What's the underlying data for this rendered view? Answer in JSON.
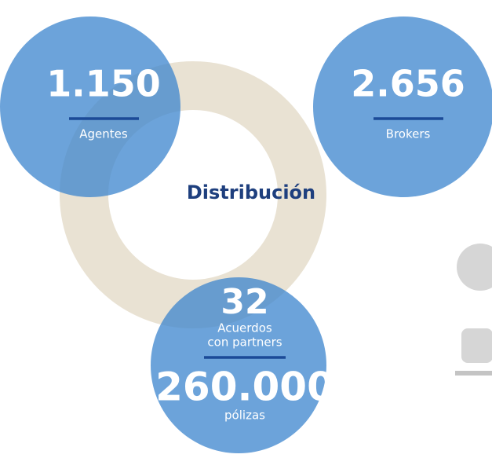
{
  "title": "Distribución",
  "nodes": [
    {
      "value": "1.150",
      "label": "Agentes"
    },
    {
      "value": "2.656",
      "label": "Brokers"
    },
    {
      "value": "32",
      "label": [
        "Acuerdos",
        "con partners"
      ],
      "value2": "260.000",
      "label2": "pólizas"
    }
  ]
}
